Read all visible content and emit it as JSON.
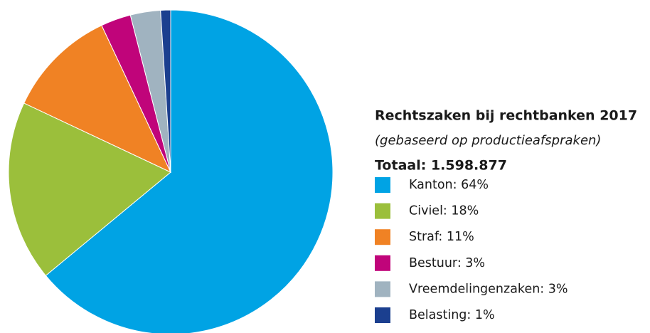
{
  "chart_data": {
    "type": "pie",
    "title": "Rechtszaken bij rechtbanken 2017",
    "subtitle": "(gebaseerd op productieafspraken)",
    "note": "Totaal: 1.598.877",
    "categories": [
      "Kanton: 64%",
      "Civiel: 18%",
      "Straf: 11%",
      "Bestuur: 3%",
      "Vreemdelingenzaken: 3%",
      "Belasting: 1%"
    ],
    "values": [
      64,
      18,
      11,
      3,
      3,
      1
    ],
    "colors": [
      "#00a3e4",
      "#9bbf3b",
      "#f08224",
      "#c0047a",
      "#a0b3c0",
      "#1b3f8f"
    ],
    "legend": "right"
  }
}
